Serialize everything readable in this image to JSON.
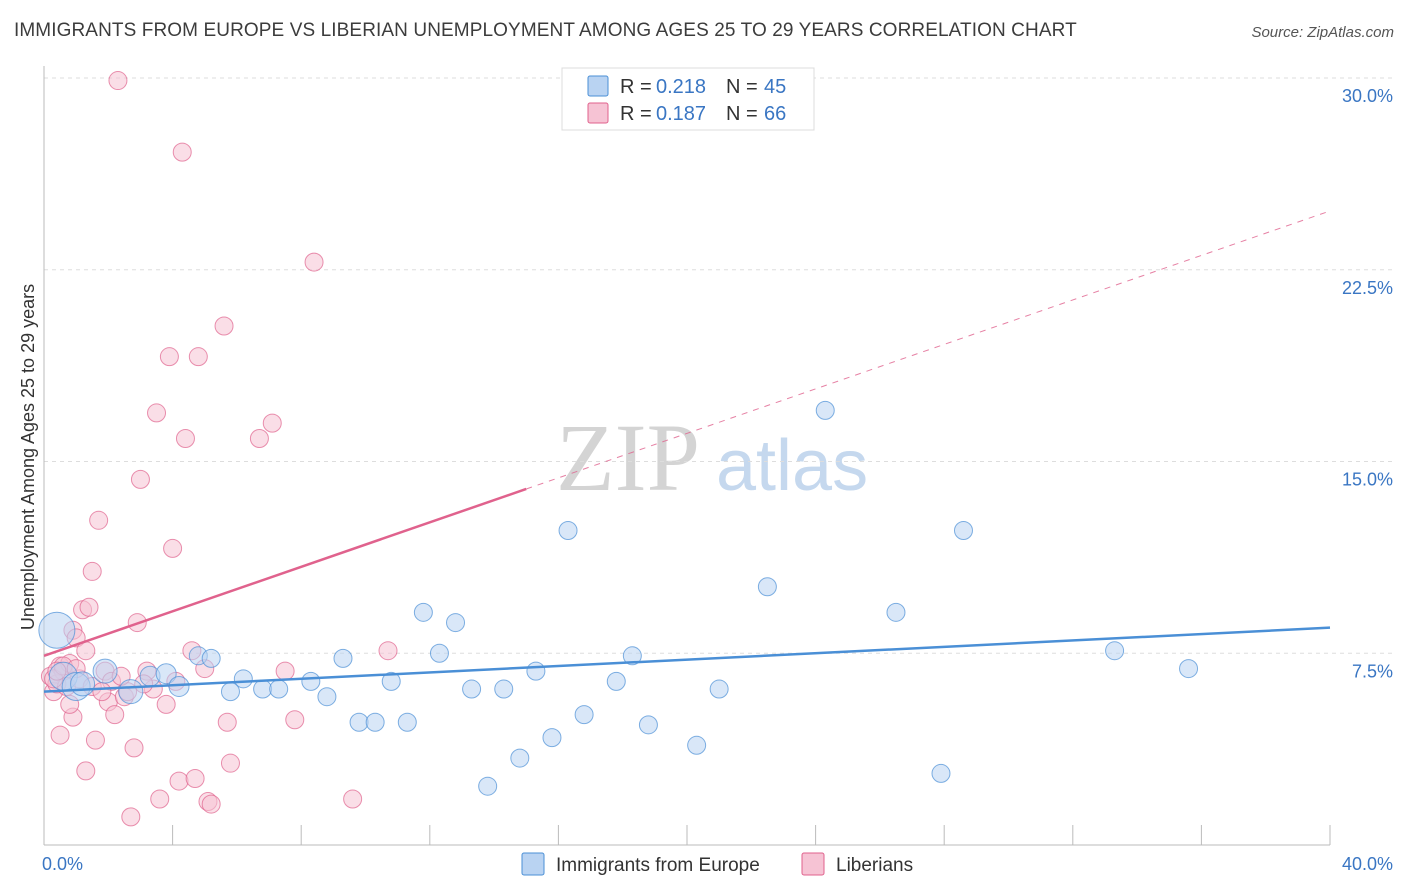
{
  "header": {
    "title": "IMMIGRANTS FROM EUROPE VS LIBERIAN UNEMPLOYMENT AMONG AGES 25 TO 29 YEARS CORRELATION CHART",
    "source": "Source: ZipAtlas.com"
  },
  "watermark": {
    "zip": "ZIP",
    "atlas": "atlas"
  },
  "colors": {
    "blue": "#4a8fd6",
    "blue_fill": "#b9d3f2",
    "pink": "#e0628d",
    "pink_fill": "#f6c3d4",
    "tick_text": "#3a76c3",
    "grid": "#dddddd"
  },
  "legend": {
    "rows": [
      {
        "r_label": "R =",
        "r_value": "0.218",
        "n_label": "N =",
        "n_value": "45",
        "series": "blue"
      },
      {
        "r_label": "R =",
        "r_value": "0.187",
        "n_label": "N =",
        "n_value": "66",
        "series": "pink"
      }
    ]
  },
  "chart_data": {
    "type": "scatter",
    "title": "IMMIGRANTS FROM EUROPE VS LIBERIAN UNEMPLOYMENT AMONG AGES 25 TO 29 YEARS CORRELATION CHART",
    "xlabel": "",
    "ylabel": "Unemployment Among Ages 25 to 29 years",
    "xlim": [
      0,
      40
    ],
    "ylim": [
      0,
      30
    ],
    "x_tick_labels": [
      {
        "value": 0,
        "label": "0.0%"
      },
      {
        "value": 40,
        "label": "40.0%"
      }
    ],
    "y_tick_labels": [
      {
        "value": 7.5,
        "label": "7.5%"
      },
      {
        "value": 15,
        "label": "15.0%"
      },
      {
        "value": 22.5,
        "label": "22.5%"
      },
      {
        "value": 30,
        "label": "30.0%"
      }
    ],
    "x_minor_ticks": [
      0,
      4,
      8,
      12,
      16,
      20,
      24,
      28,
      32,
      36,
      40
    ],
    "series": [
      {
        "name": "Immigrants from Europe",
        "color": "blue",
        "trend": {
          "x0": 0,
          "y0": 6.0,
          "x1": 40,
          "y1": 8.5,
          "dashed_from": null
        },
        "points": [
          [
            0.4,
            8.4,
            18
          ],
          [
            0.6,
            6.6,
            14
          ],
          [
            1.0,
            6.2,
            14
          ],
          [
            1.2,
            6.3,
            12
          ],
          [
            1.9,
            6.8,
            12
          ],
          [
            2.7,
            6.0,
            12
          ],
          [
            3.3,
            6.6,
            10
          ],
          [
            3.8,
            6.7,
            10
          ],
          [
            4.2,
            6.2,
            10
          ],
          [
            4.8,
            7.4,
            9
          ],
          [
            5.2,
            7.3,
            9
          ],
          [
            5.8,
            6.0,
            9
          ],
          [
            6.2,
            6.5,
            9
          ],
          [
            6.8,
            6.1,
            9
          ],
          [
            7.3,
            6.1,
            9
          ],
          [
            8.3,
            6.4,
            9
          ],
          [
            8.8,
            5.8,
            9
          ],
          [
            9.3,
            7.3,
            9
          ],
          [
            9.8,
            4.8,
            9
          ],
          [
            10.3,
            4.8,
            9
          ],
          [
            10.8,
            6.4,
            9
          ],
          [
            11.3,
            4.8,
            9
          ],
          [
            11.8,
            9.1,
            9
          ],
          [
            12.3,
            7.5,
            9
          ],
          [
            12.8,
            8.7,
            9
          ],
          [
            13.3,
            6.1,
            9
          ],
          [
            13.8,
            2.3,
            9
          ],
          [
            14.3,
            6.1,
            9
          ],
          [
            14.8,
            3.4,
            9
          ],
          [
            15.3,
            6.8,
            9
          ],
          [
            15.8,
            4.2,
            9
          ],
          [
            16.3,
            12.3,
            9
          ],
          [
            16.8,
            5.1,
            9
          ],
          [
            17.8,
            6.4,
            9
          ],
          [
            18.3,
            7.4,
            9
          ],
          [
            18.8,
            4.7,
            9
          ],
          [
            20.3,
            3.9,
            9
          ],
          [
            21.0,
            6.1,
            9
          ],
          [
            22.5,
            10.1,
            9
          ],
          [
            24.3,
            17.0,
            9
          ],
          [
            26.5,
            9.1,
            9
          ],
          [
            27.9,
            2.8,
            9
          ],
          [
            28.6,
            12.3,
            9
          ],
          [
            33.3,
            7.6,
            9
          ],
          [
            35.6,
            6.9,
            9
          ]
        ]
      },
      {
        "name": "Liberians",
        "color": "pink",
        "trend": {
          "x0": 0,
          "y0": 7.4,
          "x1": 40,
          "y1": 24.8,
          "dashed_from": 15.0
        },
        "points": [
          [
            0.2,
            6.6,
            9
          ],
          [
            0.3,
            6.0,
            9
          ],
          [
            0.4,
            6.3,
            9
          ],
          [
            0.5,
            7.0,
            9
          ],
          [
            0.6,
            6.8,
            9
          ],
          [
            0.7,
            6.2,
            9
          ],
          [
            0.8,
            7.1,
            9
          ],
          [
            0.9,
            8.4,
            9
          ],
          [
            1.0,
            8.1,
            9
          ],
          [
            1.1,
            6.5,
            9
          ],
          [
            1.2,
            9.2,
            9
          ],
          [
            1.3,
            7.6,
            9
          ],
          [
            1.4,
            9.3,
            9
          ],
          [
            0.5,
            4.3,
            9
          ],
          [
            0.9,
            5.0,
            9
          ],
          [
            1.3,
            2.9,
            9
          ],
          [
            1.5,
            10.7,
            9
          ],
          [
            1.6,
            4.1,
            9
          ],
          [
            1.7,
            12.7,
            9
          ],
          [
            1.9,
            6.8,
            9
          ],
          [
            2.0,
            5.6,
            9
          ],
          [
            2.1,
            6.4,
            9
          ],
          [
            2.2,
            5.1,
            9
          ],
          [
            2.3,
            29.9,
            9
          ],
          [
            2.5,
            5.8,
            9
          ],
          [
            2.6,
            6.0,
            9
          ],
          [
            2.7,
            1.1,
            9
          ],
          [
            2.8,
            3.8,
            9
          ],
          [
            2.9,
            8.7,
            9
          ],
          [
            3.0,
            14.3,
            9
          ],
          [
            3.2,
            6.8,
            9
          ],
          [
            3.4,
            6.1,
            9
          ],
          [
            3.5,
            16.9,
            9
          ],
          [
            3.6,
            1.8,
            9
          ],
          [
            3.8,
            5.5,
            9
          ],
          [
            3.9,
            19.1,
            9
          ],
          [
            4.0,
            11.6,
            9
          ],
          [
            4.1,
            6.4,
            9
          ],
          [
            4.2,
            2.5,
            9
          ],
          [
            4.3,
            27.1,
            9
          ],
          [
            4.4,
            15.9,
            9
          ],
          [
            4.6,
            7.6,
            9
          ],
          [
            4.7,
            2.6,
            9
          ],
          [
            4.8,
            19.1,
            9
          ],
          [
            5.0,
            6.9,
            9
          ],
          [
            5.1,
            1.7,
            9
          ],
          [
            5.2,
            1.6,
            9
          ],
          [
            5.6,
            20.3,
            9
          ],
          [
            5.7,
            4.8,
            9
          ],
          [
            5.8,
            3.2,
            9
          ],
          [
            6.7,
            15.9,
            9
          ],
          [
            7.1,
            16.5,
            9
          ],
          [
            7.5,
            6.8,
            9
          ],
          [
            7.8,
            4.9,
            9
          ],
          [
            8.4,
            22.8,
            9
          ],
          [
            9.6,
            1.8,
            9
          ],
          [
            10.7,
            7.6,
            9
          ],
          [
            0.3,
            6.5,
            9
          ],
          [
            0.6,
            7.0,
            9
          ],
          [
            1.0,
            6.9,
            9
          ],
          [
            1.5,
            6.2,
            9
          ],
          [
            2.4,
            6.6,
            9
          ],
          [
            3.1,
            6.3,
            9
          ],
          [
            0.4,
            6.8,
            9
          ],
          [
            0.8,
            5.5,
            9
          ],
          [
            1.8,
            6.0,
            9
          ]
        ]
      }
    ]
  },
  "bottom_legend": [
    {
      "label": "Immigrants from Europe",
      "series": "blue"
    },
    {
      "label": "Liberians",
      "series": "pink"
    }
  ]
}
